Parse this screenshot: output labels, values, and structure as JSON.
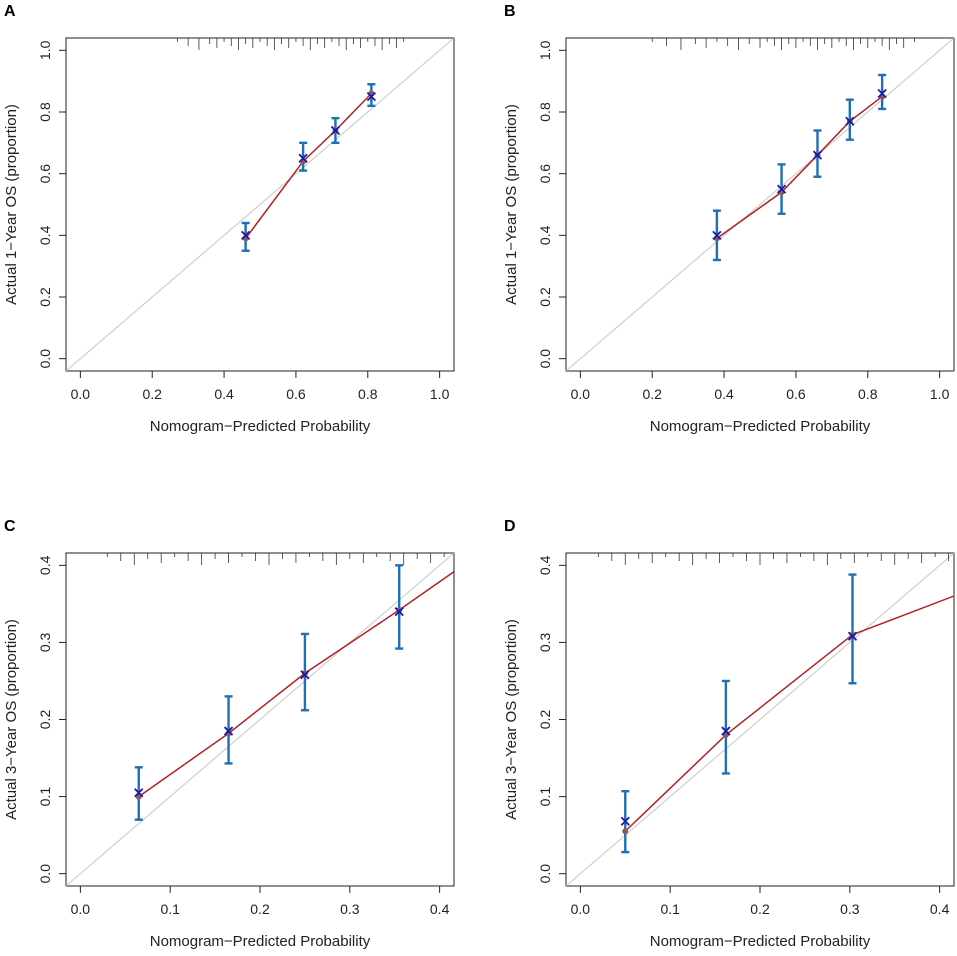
{
  "colors": {
    "reference_line": "#cfcfcf",
    "apparent_line": "#b22222",
    "error_bar": "#1f6fb5",
    "bias_corrected_marker": "#1a1aa8",
    "apparent_point": "#8b5a5a",
    "rug": "#333333",
    "axis": "#222222"
  },
  "chart_data": [
    {
      "panel": "A",
      "type": "line",
      "title": "",
      "xlabel": "Nomogram−Predicted Probability",
      "ylabel": "Actual 1−Year OS (proportion)",
      "xlim": [
        0.0,
        1.0
      ],
      "ylim": [
        0.0,
        1.0
      ],
      "xticks": [
        "0.0",
        "0.2",
        "0.4",
        "0.6",
        "0.8",
        "1.0"
      ],
      "yticks": [
        "0.0",
        "0.2",
        "0.4",
        "0.6",
        "0.8",
        "1.0"
      ],
      "x": [
        0.46,
        0.62,
        0.71,
        0.81
      ],
      "observed": [
        0.4,
        0.65,
        0.74,
        0.85
      ],
      "lower": [
        0.35,
        0.61,
        0.7,
        0.82
      ],
      "upper": [
        0.44,
        0.7,
        0.78,
        0.89
      ],
      "apparent_line_x": [
        0.46,
        0.62,
        0.71,
        0.81
      ],
      "apparent_line_y": [
        0.39,
        0.64,
        0.74,
        0.86
      ],
      "rug": [
        0.27,
        0.3,
        0.33,
        0.36,
        0.38,
        0.4,
        0.42,
        0.44,
        0.46,
        0.48,
        0.5,
        0.52,
        0.54,
        0.56,
        0.58,
        0.6,
        0.62,
        0.64,
        0.66,
        0.68,
        0.7,
        0.72,
        0.74,
        0.76,
        0.78,
        0.8,
        0.82,
        0.84,
        0.86,
        0.88,
        0.9
      ]
    },
    {
      "panel": "B",
      "type": "line",
      "title": "",
      "xlabel": "Nomogram−Predicted Probability",
      "ylabel": "Actual 1−Year OS (proportion)",
      "xlim": [
        0.0,
        1.0
      ],
      "ylim": [
        0.0,
        1.0
      ],
      "xticks": [
        "0.0",
        "0.2",
        "0.4",
        "0.6",
        "0.8",
        "1.0"
      ],
      "yticks": [
        "0.0",
        "0.2",
        "0.4",
        "0.6",
        "0.8",
        "1.0"
      ],
      "x": [
        0.38,
        0.56,
        0.66,
        0.75,
        0.84
      ],
      "observed": [
        0.4,
        0.55,
        0.66,
        0.77,
        0.86
      ],
      "lower": [
        0.32,
        0.47,
        0.59,
        0.71,
        0.81
      ],
      "upper": [
        0.48,
        0.63,
        0.74,
        0.84,
        0.92
      ],
      "apparent_line_x": [
        0.38,
        0.56,
        0.66,
        0.75,
        0.84
      ],
      "apparent_line_y": [
        0.39,
        0.54,
        0.66,
        0.77,
        0.85
      ],
      "rug": [
        0.2,
        0.24,
        0.28,
        0.32,
        0.35,
        0.38,
        0.41,
        0.44,
        0.47,
        0.5,
        0.52,
        0.54,
        0.56,
        0.58,
        0.6,
        0.62,
        0.64,
        0.66,
        0.68,
        0.7,
        0.72,
        0.74,
        0.76,
        0.78,
        0.8,
        0.82,
        0.84,
        0.86,
        0.88,
        0.9,
        0.93
      ]
    },
    {
      "panel": "C",
      "type": "line",
      "title": "",
      "xlabel": "Nomogram−Predicted Probability",
      "ylabel": "Actual 3−Year OS (proportion)",
      "xlim": [
        0.0,
        0.4
      ],
      "ylim": [
        0.0,
        0.4
      ],
      "xticks": [
        "0.0",
        "0.1",
        "0.2",
        "0.3",
        "0.4"
      ],
      "yticks": [
        "0.0",
        "0.1",
        "0.2",
        "0.3",
        "0.4"
      ],
      "x": [
        0.065,
        0.165,
        0.25,
        0.355
      ],
      "observed": [
        0.105,
        0.185,
        0.258,
        0.34
      ],
      "lower": [
        0.07,
        0.143,
        0.212,
        0.292
      ],
      "upper": [
        0.138,
        0.23,
        0.311,
        0.4
      ],
      "apparent_line_x": [
        0.065,
        0.165,
        0.25,
        0.355,
        0.42
      ],
      "apparent_line_y": [
        0.1,
        0.182,
        0.26,
        0.342,
        0.395
      ],
      "rug": [
        0.03,
        0.045,
        0.06,
        0.075,
        0.09,
        0.105,
        0.12,
        0.135,
        0.15,
        0.165,
        0.18,
        0.195,
        0.21,
        0.225,
        0.24,
        0.255,
        0.27,
        0.285,
        0.3,
        0.315,
        0.33,
        0.345,
        0.36,
        0.375,
        0.39,
        0.405
      ]
    },
    {
      "panel": "D",
      "type": "line",
      "title": "",
      "xlabel": "Nomogram−Predicted Probability",
      "ylabel": "Actual 3−Year OS (proportion)",
      "xlim": [
        0.0,
        0.4
      ],
      "ylim": [
        0.0,
        0.4
      ],
      "xticks": [
        "0.0",
        "0.1",
        "0.2",
        "0.3",
        "0.4"
      ],
      "yticks": [
        "0.0",
        "0.1",
        "0.2",
        "0.3",
        "0.4"
      ],
      "x": [
        0.05,
        0.162,
        0.303
      ],
      "observed": [
        0.068,
        0.185,
        0.308
      ],
      "lower": [
        0.028,
        0.13,
        0.247
      ],
      "upper": [
        0.107,
        0.25,
        0.388
      ],
      "apparent_line_x": [
        0.05,
        0.162,
        0.303,
        0.42
      ],
      "apparent_line_y": [
        0.055,
        0.18,
        0.31,
        0.362
      ],
      "rug": [
        0.02,
        0.035,
        0.05,
        0.065,
        0.08,
        0.095,
        0.11,
        0.125,
        0.14,
        0.155,
        0.17,
        0.185,
        0.2,
        0.215,
        0.23,
        0.245,
        0.26,
        0.275,
        0.29,
        0.305,
        0.32,
        0.335,
        0.35,
        0.365,
        0.38,
        0.395,
        0.41
      ]
    }
  ]
}
